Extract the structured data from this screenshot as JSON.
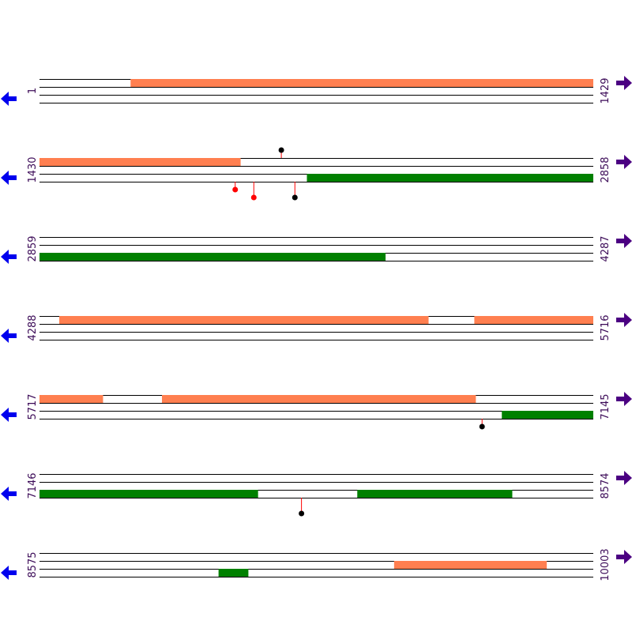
{
  "colors": {
    "forward_feature": "#FF7F50",
    "reverse_feature": "#008000",
    "left_arrow": "#0000EE",
    "right_arrow": "#4B0082",
    "label": "#3B0A57",
    "marker_red": "#FF0000",
    "marker_black": "#000000",
    "stem": "#FF0000",
    "track_line": "#000000"
  },
  "icons": {
    "left": "arrow-left-icon",
    "right": "arrow-right-icon"
  },
  "rows": [
    {
      "start_label": "1",
      "end_label": "1429",
      "start": 1,
      "end": 1429,
      "segments": [
        {
          "strand": "forward",
          "lane": 0,
          "from": 236,
          "to": 1429
        }
      ],
      "markers": []
    },
    {
      "start_label": "1430",
      "end_label": "2858",
      "start": 1430,
      "end": 2858,
      "segments": [
        {
          "strand": "forward",
          "lane": 0,
          "from": 1430,
          "to": 1948
        },
        {
          "strand": "reverse",
          "lane": 2,
          "from": 2120,
          "to": 2858
        }
      ],
      "markers": [
        {
          "pos": 2054,
          "side": "top",
          "color": "black",
          "stem": 10
        },
        {
          "pos": 1935,
          "side": "bottom",
          "color": "red",
          "stem": 10
        },
        {
          "pos": 1983,
          "side": "bottom",
          "color": "red",
          "stem": 20
        },
        {
          "pos": 2089,
          "side": "bottom",
          "color": "black",
          "stem": 20
        }
      ]
    },
    {
      "start_label": "2859",
      "end_label": "4287",
      "start": 2859,
      "end": 4287,
      "segments": [
        {
          "strand": "reverse",
          "lane": 2,
          "from": 2859,
          "to": 3751
        }
      ],
      "markers": []
    },
    {
      "start_label": "4288",
      "end_label": "5716",
      "start": 4288,
      "end": 5716,
      "segments": [
        {
          "strand": "forward",
          "lane": 0,
          "from": 4339,
          "to": 5291
        },
        {
          "strand": "forward",
          "lane": 0,
          "from": 5410,
          "to": 5716
        }
      ],
      "markers": []
    },
    {
      "start_label": "5717",
      "end_label": "7145",
      "start": 5717,
      "end": 7145,
      "segments": [
        {
          "strand": "forward",
          "lane": 0,
          "from": 5717,
          "to": 5880
        },
        {
          "strand": "forward",
          "lane": 0,
          "from": 6033,
          "to": 6842
        },
        {
          "strand": "reverse",
          "lane": 2,
          "from": 6910,
          "to": 7145
        }
      ],
      "markers": [
        {
          "pos": 6859,
          "side": "bottom",
          "color": "black",
          "stem": 10
        }
      ]
    },
    {
      "start_label": "7146",
      "end_label": "8574",
      "start": 7146,
      "end": 8574,
      "segments": [
        {
          "strand": "reverse",
          "lane": 2,
          "from": 7146,
          "to": 7709
        },
        {
          "strand": "reverse",
          "lane": 2,
          "from": 7966,
          "to": 8365
        }
      ],
      "markers": [
        {
          "pos": 7822,
          "side": "bottom",
          "color": "black",
          "stem": 20
        }
      ]
    },
    {
      "start_label": "8575",
      "end_label": "10003",
      "start": 8575,
      "end": 10003,
      "segments": [
        {
          "strand": "forward",
          "lane": 1,
          "from": 9490,
          "to": 9883
        },
        {
          "strand": "reverse",
          "lane": 2,
          "from": 9037,
          "to": 9113
        }
      ],
      "markers": []
    }
  ]
}
